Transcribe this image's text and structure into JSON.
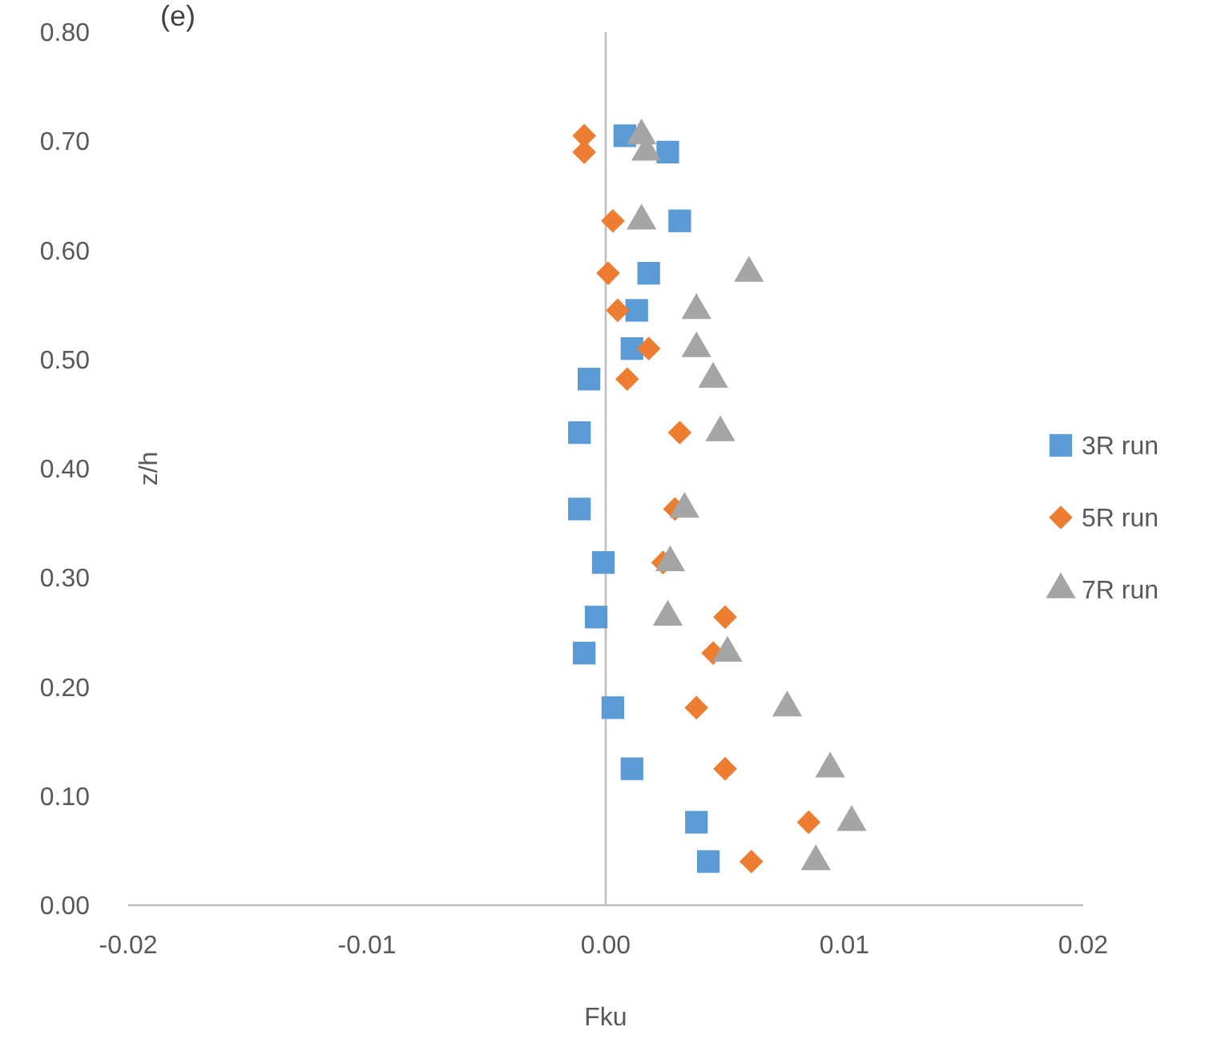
{
  "chart_data": {
    "type": "scatter",
    "title": "(e)",
    "xlabel": "Fku",
    "ylabel": "z/h",
    "legend": "right",
    "xlim": [
      -0.02,
      0.02
    ],
    "xticks": [
      {
        "value": -0.02,
        "label": "-0.02"
      },
      {
        "value": -0.01,
        "label": "-0.01"
      },
      {
        "value": 0,
        "label": "0.00"
      },
      {
        "value": 0.01,
        "label": "0.01"
      },
      {
        "value": 0.02,
        "label": "0.02"
      }
    ],
    "ylim": [
      0,
      0.8
    ],
    "yticks": [
      {
        "value": 0,
        "label": "0.00"
      },
      {
        "value": 0.1,
        "label": "0.10"
      },
      {
        "value": 0.2,
        "label": "0.20"
      },
      {
        "value": 0.3,
        "label": "0.30"
      },
      {
        "value": 0.4,
        "label": "0.40"
      },
      {
        "value": 0.5,
        "label": "0.50"
      },
      {
        "value": 0.6,
        "label": "0.60"
      },
      {
        "value": 0.7,
        "label": "0.70"
      },
      {
        "value": 0.8,
        "label": "0.80"
      }
    ],
    "series": [
      {
        "name": "3R run",
        "color": "#5b9bd5",
        "marker": "square",
        "x": [
          0.0008,
          0.0026,
          0.0031,
          0.0018,
          0.0013,
          0.0011,
          -0.0007,
          -0.0011,
          -0.0011,
          -0.0001,
          -0.0004,
          -0.0009,
          0.0003,
          0.0011,
          0.0038,
          0.0043
        ],
        "values": [
          0.705,
          0.69,
          0.627,
          0.579,
          0.545,
          0.51,
          0.482,
          0.433,
          0.363,
          0.314,
          0.264,
          0.231,
          0.181,
          0.125,
          0.076,
          0.04
        ]
      },
      {
        "name": "5R run",
        "color": "#ed7d31",
        "marker": "diamond",
        "x": [
          -0.0009,
          -0.0009,
          0.0003,
          0.0001,
          0.0005,
          0.0018,
          0.0009,
          0.0031,
          0.0029,
          0.0024,
          0.005,
          0.0045,
          0.0038,
          0.005,
          0.0085,
          0.0061
        ],
        "values": [
          0.705,
          0.69,
          0.627,
          0.579,
          0.545,
          0.51,
          0.482,
          0.433,
          0.363,
          0.314,
          0.264,
          0.231,
          0.181,
          0.125,
          0.076,
          0.04
        ]
      },
      {
        "name": "7R run",
        "color": "#a5a5a5",
        "marker": "triangle",
        "x": [
          0.0015,
          0.0017,
          0.0015,
          0.006,
          0.0038,
          0.0038,
          0.0045,
          0.0048,
          0.0033,
          0.0027,
          0.0026,
          0.0051,
          0.0076,
          0.0094,
          0.0103,
          0.0088
        ],
        "values": [
          0.705,
          0.69,
          0.627,
          0.579,
          0.545,
          0.51,
          0.482,
          0.433,
          0.363,
          0.314,
          0.264,
          0.231,
          0.181,
          0.125,
          0.076,
          0.04
        ]
      }
    ]
  }
}
